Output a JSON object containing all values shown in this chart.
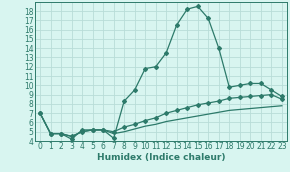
{
  "xlabel": "Humidex (Indice chaleur)",
  "background_color": "#d8f5f0",
  "line_color": "#2d7a6a",
  "grid_color": "#b8ddd8",
  "x_values": [
    0,
    1,
    2,
    3,
    4,
    5,
    6,
    7,
    8,
    9,
    10,
    11,
    12,
    13,
    14,
    15,
    16,
    17,
    18,
    19,
    20,
    21,
    22,
    23
  ],
  "series1": [
    7.0,
    4.8,
    4.8,
    4.2,
    5.2,
    5.2,
    5.2,
    4.3,
    8.3,
    9.5,
    11.8,
    12.0,
    13.5,
    16.5,
    18.2,
    18.5,
    17.2,
    14.0,
    9.8,
    10.0,
    10.2,
    10.2,
    9.5,
    8.8
  ],
  "series2": [
    7.0,
    4.8,
    4.8,
    4.5,
    5.0,
    5.2,
    5.2,
    5.0,
    5.5,
    5.8,
    6.2,
    6.5,
    7.0,
    7.3,
    7.6,
    7.9,
    8.1,
    8.3,
    8.6,
    8.7,
    8.8,
    8.9,
    9.0,
    8.5
  ],
  "series3": [
    7.0,
    4.8,
    4.8,
    4.5,
    5.0,
    5.2,
    5.2,
    4.8,
    5.0,
    5.3,
    5.6,
    5.8,
    6.1,
    6.3,
    6.5,
    6.7,
    6.9,
    7.1,
    7.3,
    7.4,
    7.5,
    7.6,
    7.7,
    7.8
  ],
  "xlim": [
    -0.5,
    23.5
  ],
  "ylim": [
    4,
    19
  ],
  "yticks": [
    4,
    5,
    6,
    7,
    8,
    9,
    10,
    11,
    12,
    13,
    14,
    15,
    16,
    17,
    18
  ],
  "xticks": [
    0,
    1,
    2,
    3,
    4,
    5,
    6,
    7,
    8,
    9,
    10,
    11,
    12,
    13,
    14,
    15,
    16,
    17,
    18,
    19,
    20,
    21,
    22,
    23
  ]
}
